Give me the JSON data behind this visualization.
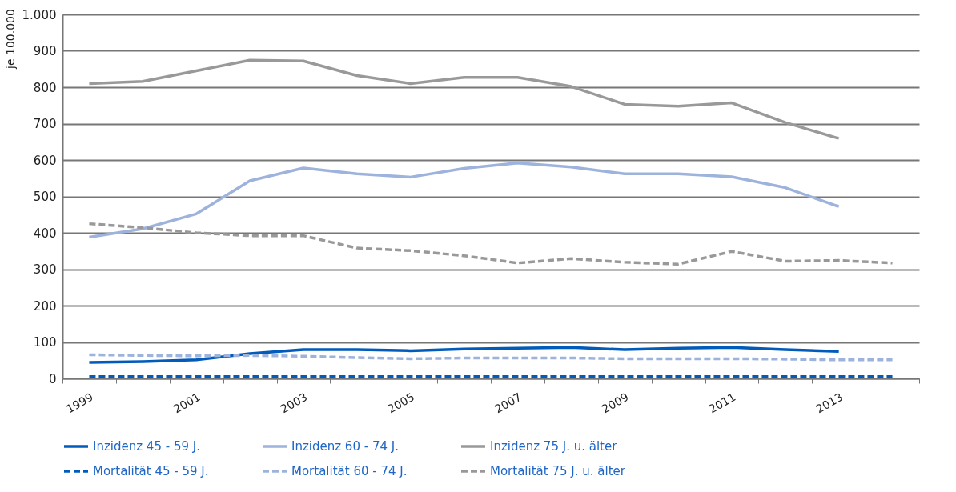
{
  "chart_data": {
    "type": "line",
    "ylabel": "je 100.000",
    "categories": [
      "1999",
      null,
      "2001",
      null,
      "2003",
      null,
      "2005",
      null,
      "2007",
      null,
      "2009",
      null,
      "2011",
      null,
      "2013",
      null
    ],
    "ylim": [
      0,
      1000
    ],
    "yticks": [
      0,
      100,
      200,
      300,
      400,
      500,
      600,
      700,
      800,
      900,
      {
        "value": 1000,
        "label": "1.000"
      }
    ],
    "grid": "y",
    "legend": "bottom",
    "series": [
      {
        "name": "Inzidenz 45 - 59 J.",
        "color": "#005bbb",
        "line_style": "solid",
        "values": [
          44,
          46,
          51,
          68,
          79,
          79,
          76,
          81,
          83,
          85,
          79,
          83,
          85,
          79,
          74,
          null
        ]
      },
      {
        "name": "Inzidenz 60 - 74 J.",
        "color": "#9db3dc",
        "line_style": "solid",
        "values": [
          388,
          411,
          452,
          543,
          578,
          562,
          553,
          577,
          592,
          581,
          562,
          562,
          554,
          524,
          472,
          null
        ]
      },
      {
        "name": "Inzidenz 75 J. u. älter",
        "color": "#999999",
        "line_style": "solid",
        "values": [
          810,
          816,
          845,
          874,
          872,
          832,
          810,
          827,
          827,
          802,
          753,
          748,
          757,
          703,
          659,
          null
        ]
      },
      {
        "name": "Mortalität 45 - 59 J.",
        "color": "#005bbb",
        "line_style": "dashed",
        "values": [
          5,
          5,
          5,
          5,
          5,
          5,
          5,
          5,
          5,
          5,
          5,
          5,
          5,
          5,
          5,
          5
        ]
      },
      {
        "name": "Mortalität 60 - 74 J.",
        "color": "#9db3dc",
        "line_style": "dashed",
        "values": [
          65,
          63,
          62,
          63,
          61,
          57,
          54,
          56,
          56,
          56,
          54,
          54,
          54,
          53,
          51,
          51
        ]
      },
      {
        "name": "Mortalität 75 J. u. älter",
        "color": "#999999",
        "line_style": "dashed",
        "values": [
          425,
          414,
          400,
          392,
          392,
          358,
          351,
          337,
          317,
          329,
          319,
          314,
          349,
          322,
          324,
          317
        ]
      }
    ]
  }
}
